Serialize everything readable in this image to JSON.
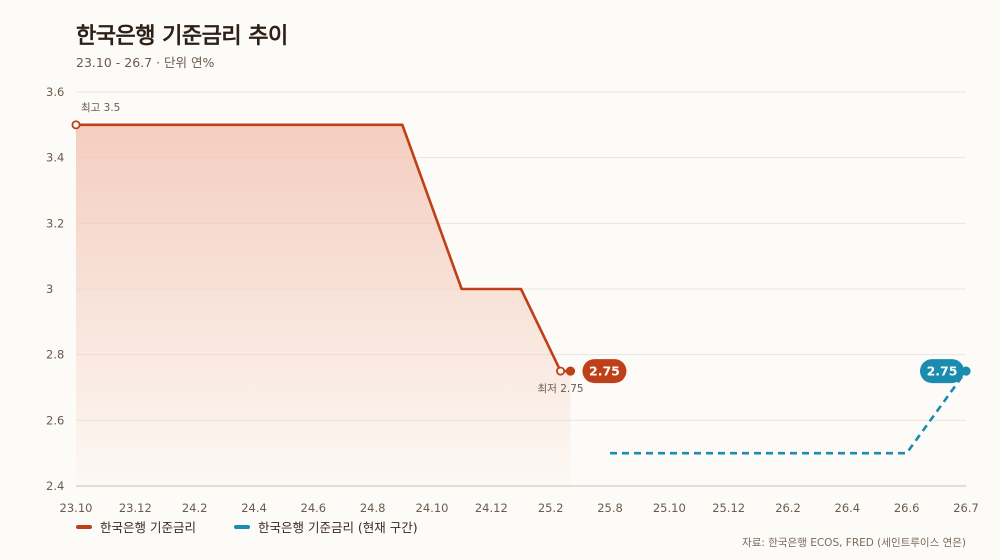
{
  "title": "한국은행 기준금리 추이",
  "subtitle": "23.10 - 26.7 · 단위 연%",
  "source": "자료: 한국은행 ECOS, FRED (세인트루이스 연은)",
  "colors": {
    "series_main": "#bf4018",
    "series_current": "#1a8caf",
    "fill_top": "#f2c6b6",
    "grid": "#ece6df",
    "axis_text": "#6b5a50"
  },
  "legend": [
    {
      "label": "한국은행 기준금리",
      "color": "#bf4018",
      "style": "solid"
    },
    {
      "label": "한국은행 기준금리 (현재 구간)",
      "color": "#1a8caf",
      "style": "dashed"
    }
  ],
  "chart_data": {
    "type": "line",
    "ylim": [
      2.4,
      3.6
    ],
    "y_ticks": [
      "2.4",
      "2.6",
      "2.8",
      "3",
      "3.2",
      "3.4",
      "3.6"
    ],
    "x_tick_labels": [
      "23.10",
      "23.12",
      "24.2",
      "24.4",
      "24.6",
      "24.8",
      "24.10",
      "24.12",
      "25.2",
      "25.8",
      "25.10",
      "25.12",
      "26.2",
      "26.4",
      "26.6",
      "26.7"
    ],
    "x_tick_months": [
      "2023-10",
      "2023-12",
      "2024-02",
      "2024-04",
      "2024-06",
      "2024-08",
      "2024-10",
      "2024-12",
      "2025-02",
      "2025-08",
      "2025-10",
      "2025-12",
      "2026-02",
      "2026-04",
      "2026-06",
      "2026-07"
    ],
    "grid": true,
    "legend_position": "bottom-left",
    "series": [
      {
        "name": "한국은행 기준금리",
        "style": "solid",
        "fill": true,
        "points": [
          {
            "x": "2023-10",
            "y": 3.5
          },
          {
            "x": "2024-09",
            "y": 3.5
          },
          {
            "x": "2024-11",
            "y": 3.0
          },
          {
            "x": "2025-01",
            "y": 3.0
          },
          {
            "x": "2025-03",
            "y": 2.75
          },
          {
            "x": "2025-04",
            "y": 2.75
          }
        ]
      },
      {
        "name": "한국은행 기준금리 (현재 구간)",
        "style": "dashed",
        "fill": false,
        "points": [
          {
            "x": "2025-08",
            "y": 2.5
          },
          {
            "x": "2026-06",
            "y": 2.5
          },
          {
            "x": "2026-07",
            "y": 2.75
          }
        ]
      }
    ],
    "annotations": [
      {
        "text": "최고 3.5",
        "x": "2023-10",
        "y": 3.5,
        "kind": "max"
      },
      {
        "text": "최저 2.75",
        "x": "2025-03",
        "y": 2.75,
        "kind": "min"
      }
    ],
    "end_labels": [
      {
        "text": "2.75",
        "x": "2025-04",
        "y": 2.75,
        "series": 0
      },
      {
        "text": "2.75",
        "x": "2026-07",
        "y": 2.75,
        "series": 1
      }
    ]
  }
}
